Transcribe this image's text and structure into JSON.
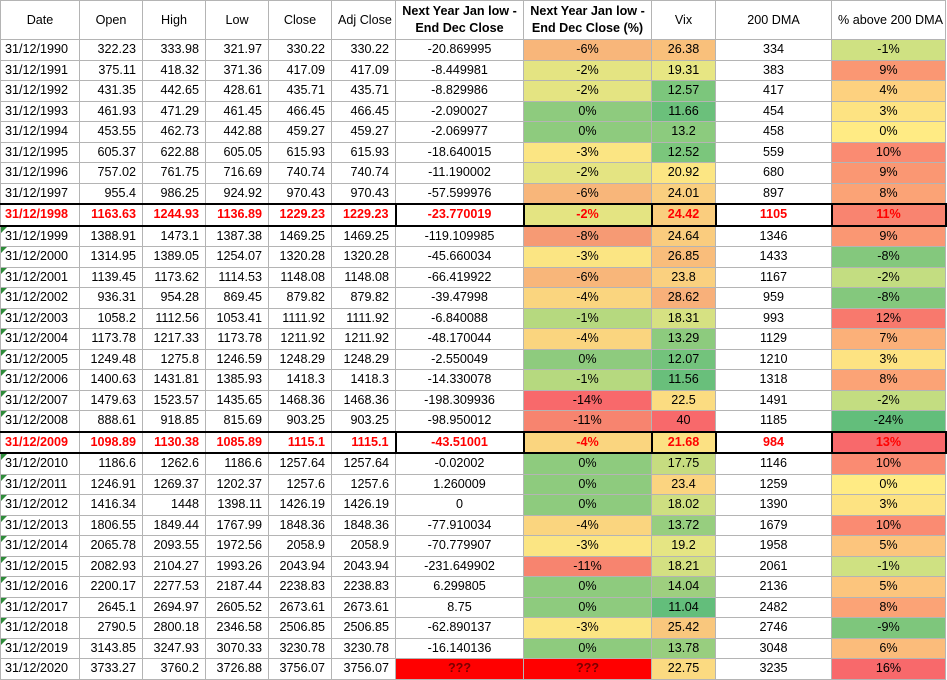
{
  "headers": [
    "Date",
    "Open",
    "High",
    "Low",
    "Close",
    "Adj Close",
    "Next Year Jan low - End Dec Close",
    "Next Year Jan low - End Dec Close (%)",
    "Vix",
    "200 DMA",
    "% above 200 DMA"
  ],
  "rows": [
    {
      "date": "31/12/1990",
      "open": "322.23",
      "high": "333.98",
      "low": "321.97",
      "close": "330.22",
      "adj": "330.22",
      "diff": "-20.869995",
      "pct": "-6%",
      "pct_color": "#f8b67a",
      "vix": "26.38",
      "vix_color": "#f9c07b",
      "dma": "334",
      "above": "-1%",
      "above_color": "#cfe182"
    },
    {
      "date": "31/12/1991",
      "open": "375.11",
      "high": "418.32",
      "low": "371.36",
      "close": "417.09",
      "adj": "417.09",
      "diff": "-8.449981",
      "pct": "-2%",
      "pct_color": "#e4e482",
      "vix": "19.31",
      "vix_color": "#e7e683",
      "dma": "383",
      "above": "9%",
      "above_color": "#fa9773"
    },
    {
      "date": "31/12/1992",
      "open": "431.35",
      "high": "442.65",
      "low": "428.61",
      "close": "435.71",
      "adj": "435.71",
      "diff": "-8.829986",
      "pct": "-2%",
      "pct_color": "#e4e482",
      "vix": "12.57",
      "vix_color": "#7cc67c",
      "dma": "417",
      "above": "4%",
      "above_color": "#fdd17f"
    },
    {
      "date": "31/12/1993",
      "open": "461.93",
      "high": "471.29",
      "low": "461.45",
      "close": "466.45",
      "adj": "466.45",
      "diff": "-2.090027",
      "pct": "0%",
      "pct_color": "#8ecb7e",
      "vix": "11.66",
      "vix_color": "#6bc07b",
      "dma": "454",
      "above": "3%",
      "above_color": "#fde382"
    },
    {
      "date": "31/12/1994",
      "open": "453.55",
      "high": "462.73",
      "low": "442.88",
      "close": "459.27",
      "adj": "459.27",
      "diff": "-2.069977",
      "pct": "0%",
      "pct_color": "#8ecb7e",
      "vix": "13.2",
      "vix_color": "#8ccb7e",
      "dma": "458",
      "above": "0%",
      "above_color": "#ffeb84"
    },
    {
      "date": "31/12/1995",
      "open": "605.37",
      "high": "622.88",
      "low": "605.05",
      "close": "615.93",
      "adj": "615.93",
      "diff": "-18.640015",
      "pct": "-3%",
      "pct_color": "#fbe583",
      "vix": "12.52",
      "vix_color": "#7bc67c",
      "dma": "559",
      "above": "10%",
      "above_color": "#fa8b72"
    },
    {
      "date": "31/12/1996",
      "open": "757.02",
      "high": "761.75",
      "low": "716.69",
      "close": "740.74",
      "adj": "740.74",
      "diff": "-11.190002",
      "pct": "-2%",
      "pct_color": "#e4e482",
      "vix": "20.92",
      "vix_color": "#fce683",
      "dma": "680",
      "above": "9%",
      "above_color": "#fa9773"
    },
    {
      "date": "31/12/1997",
      "open": "955.4",
      "high": "986.25",
      "low": "924.92",
      "close": "970.43",
      "adj": "970.43",
      "diff": "-57.599976",
      "pct": "-6%",
      "pct_color": "#f8b67a",
      "vix": "24.01",
      "vix_color": "#facf7f",
      "dma": "897",
      "above": "8%",
      "above_color": "#fba376"
    },
    {
      "date": "31/12/1998",
      "open": "1163.63",
      "high": "1244.93",
      "low": "1136.89",
      "close": "1229.23",
      "adj": "1229.23",
      "diff": "-23.770019",
      "pct": "-2%",
      "pct_color": "#e4e482",
      "vix": "24.42",
      "vix_color": "#facd7e",
      "dma": "1105",
      "above": "11%",
      "above_color": "#f98470",
      "hl": true
    },
    {
      "date": "31/12/1999",
      "open": "1388.91",
      "high": "1473.1",
      "low": "1387.38",
      "close": "1469.25",
      "adj": "1469.25",
      "diff": "-119.109985",
      "pct": "-8%",
      "pct_color": "#f69a74",
      "vix": "24.64",
      "vix_color": "#facc7e",
      "dma": "1346",
      "above": "9%",
      "above_color": "#fa9773"
    },
    {
      "date": "31/12/2000",
      "open": "1314.95",
      "high": "1389.05",
      "low": "1254.07",
      "close": "1320.28",
      "adj": "1320.28",
      "diff": "-45.660034",
      "pct": "-3%",
      "pct_color": "#fbe583",
      "vix": "26.85",
      "vix_color": "#f9bd7b",
      "dma": "1433",
      "above": "-8%",
      "above_color": "#84c87d"
    },
    {
      "date": "31/12/2001",
      "open": "1139.45",
      "high": "1173.62",
      "low": "1114.53",
      "close": "1148.08",
      "adj": "1148.08",
      "diff": "-66.419922",
      "pct": "-6%",
      "pct_color": "#f8b67a",
      "vix": "23.8",
      "vix_color": "#fad07f",
      "dma": "1167",
      "above": "-2%",
      "above_color": "#c3dd81"
    },
    {
      "date": "31/12/2002",
      "open": "936.31",
      "high": "954.28",
      "low": "869.45",
      "close": "879.82",
      "adj": "879.82",
      "diff": "-39.47998",
      "pct": "-4%",
      "pct_color": "#fad57f",
      "vix": "28.62",
      "vix_color": "#f8b07a",
      "dma": "959",
      "above": "-8%",
      "above_color": "#84c87d"
    },
    {
      "date": "31/12/2003",
      "open": "1058.2",
      "high": "1112.56",
      "low": "1053.41",
      "close": "1111.92",
      "adj": "1111.92",
      "diff": "-6.840088",
      "pct": "-1%",
      "pct_color": "#b6d97f",
      "vix": "18.31",
      "vix_color": "#d6e182",
      "dma": "993",
      "above": "12%",
      "above_color": "#f8796d"
    },
    {
      "date": "31/12/2004",
      "open": "1173.78",
      "high": "1217.33",
      "low": "1173.78",
      "close": "1211.92",
      "adj": "1211.92",
      "diff": "-48.170044",
      "pct": "-4%",
      "pct_color": "#fad57f",
      "vix": "13.29",
      "vix_color": "#8dcb7e",
      "dma": "1129",
      "above": "7%",
      "above_color": "#fbb079"
    },
    {
      "date": "31/12/2005",
      "open": "1249.48",
      "high": "1275.8",
      "low": "1246.59",
      "close": "1248.29",
      "adj": "1248.29",
      "diff": "-2.550049",
      "pct": "0%",
      "pct_color": "#8ecb7e",
      "vix": "12.07",
      "vix_color": "#73c37c",
      "dma": "1210",
      "above": "3%",
      "above_color": "#fde382"
    },
    {
      "date": "31/12/2006",
      "open": "1400.63",
      "high": "1431.81",
      "low": "1385.93",
      "close": "1418.3",
      "adj": "1418.3",
      "diff": "-14.330078",
      "pct": "-1%",
      "pct_color": "#b6d97f",
      "vix": "11.56",
      "vix_color": "#69bf7b",
      "dma": "1318",
      "above": "8%",
      "above_color": "#fba376"
    },
    {
      "date": "31/12/2007",
      "open": "1479.63",
      "high": "1523.57",
      "low": "1435.65",
      "close": "1468.36",
      "adj": "1468.36",
      "diff": "-198.309936",
      "pct": "-14%",
      "pct_color": "#f8696b",
      "vix": "22.5",
      "vix_color": "#fbdc81",
      "dma": "1491",
      "above": "-2%",
      "above_color": "#c3dd81"
    },
    {
      "date": "31/12/2008",
      "open": "888.61",
      "high": "918.85",
      "low": "815.69",
      "close": "903.25",
      "adj": "903.25",
      "diff": "-98.950012",
      "pct": "-11%",
      "pct_color": "#f7846f",
      "vix": "40",
      "vix_color": "#f8696b",
      "dma": "1185",
      "above": "-24%",
      "above_color": "#63be7b"
    },
    {
      "date": "31/12/2009",
      "open": "1098.89",
      "high": "1130.38",
      "low": "1085.89",
      "close": "1115.1",
      "adj": "1115.1",
      "diff": "-43.51001",
      "pct": "-4%",
      "pct_color": "#fad57f",
      "vix": "21.68",
      "vix_color": "#fce183",
      "dma": "984",
      "above": "13%",
      "above_color": "#f8696b",
      "hl": true
    },
    {
      "date": "31/12/2010",
      "open": "1186.6",
      "high": "1262.6",
      "low": "1186.6",
      "close": "1257.64",
      "adj": "1257.64",
      "diff": "-0.02002",
      "pct": "0%",
      "pct_color": "#8ecb7e",
      "vix": "17.75",
      "vix_color": "#c6dc80",
      "dma": "1146",
      "above": "10%",
      "above_color": "#fa8b72"
    },
    {
      "date": "31/12/2011",
      "open": "1246.91",
      "high": "1269.37",
      "low": "1202.37",
      "close": "1257.6",
      "adj": "1257.6",
      "diff": "1.260009",
      "pct": "0%",
      "pct_color": "#8ecb7e",
      "vix": "23.4",
      "vix_color": "#fbd480",
      "dma": "1259",
      "above": "0%",
      "above_color": "#ffeb84"
    },
    {
      "date": "31/12/2012",
      "open": "1416.34",
      "high": "1448",
      "low": "1398.11",
      "close": "1426.19",
      "adj": "1426.19",
      "diff": "0",
      "pct": "0%",
      "pct_color": "#8ecb7e",
      "vix": "18.02",
      "vix_color": "#cedf81",
      "dma": "1390",
      "above": "3%",
      "above_color": "#fde382"
    },
    {
      "date": "31/12/2013",
      "open": "1806.55",
      "high": "1849.44",
      "low": "1767.99",
      "close": "1848.36",
      "adj": "1848.36",
      "diff": "-77.910034",
      "pct": "-4%",
      "pct_color": "#fad57f",
      "vix": "13.72",
      "vix_color": "#97ce7f",
      "dma": "1679",
      "above": "10%",
      "above_color": "#fa8b72"
    },
    {
      "date": "31/12/2014",
      "open": "2065.78",
      "high": "2093.55",
      "low": "1972.56",
      "close": "2058.9",
      "adj": "2058.9",
      "diff": "-70.779907",
      "pct": "-3%",
      "pct_color": "#fbe583",
      "vix": "19.2",
      "vix_color": "#e5e583",
      "dma": "1958",
      "above": "5%",
      "above_color": "#fcc57d"
    },
    {
      "date": "31/12/2015",
      "open": "2082.93",
      "high": "2104.27",
      "low": "1993.26",
      "close": "2043.94",
      "adj": "2043.94",
      "diff": "-231.649902",
      "pct": "-11%",
      "pct_color": "#f7846f",
      "vix": "18.21",
      "vix_color": "#d3e082",
      "dma": "2061",
      "above": "-1%",
      "above_color": "#cfe182"
    },
    {
      "date": "31/12/2016",
      "open": "2200.17",
      "high": "2277.53",
      "low": "2187.44",
      "close": "2238.83",
      "adj": "2238.83",
      "diff": "6.299805",
      "pct": "0%",
      "pct_color": "#8ecb7e",
      "vix": "14.04",
      "vix_color": "#9ecf7f",
      "dma": "2136",
      "above": "5%",
      "above_color": "#fcc57d"
    },
    {
      "date": "31/12/2017",
      "open": "2645.1",
      "high": "2694.97",
      "low": "2605.52",
      "close": "2673.61",
      "adj": "2673.61",
      "diff": "8.75",
      "pct": "0%",
      "pct_color": "#8ecb7e",
      "vix": "11.04",
      "vix_color": "#63be7b",
      "dma": "2482",
      "above": "8%",
      "above_color": "#fba376"
    },
    {
      "date": "31/12/2018",
      "open": "2790.5",
      "high": "2800.18",
      "low": "2346.58",
      "close": "2506.85",
      "adj": "2506.85",
      "diff": "-62.890137",
      "pct": "-3%",
      "pct_color": "#fbe583",
      "vix": "25.42",
      "vix_color": "#f9c77d",
      "dma": "2746",
      "above": "-9%",
      "above_color": "#7ec67c"
    },
    {
      "date": "31/12/2019",
      "open": "3143.85",
      "high": "3247.93",
      "low": "3070.33",
      "close": "3230.78",
      "adj": "3230.78",
      "diff": "-16.140136",
      "pct": "0%",
      "pct_color": "#8ecb7e",
      "vix": "13.78",
      "vix_color": "#98ce7f",
      "dma": "3048",
      "above": "6%",
      "above_color": "#fbbc7b"
    },
    {
      "date": "31/12/2020",
      "open": "3733.27",
      "high": "3760.2",
      "low": "3726.88",
      "close": "3756.07",
      "adj": "3756.07",
      "diff": "???",
      "pct": "???",
      "pct_color": "#ff0000",
      "vix": "22.75",
      "vix_color": "#fbda81",
      "dma": "3235",
      "above": "16%",
      "above_color": "#f8696b",
      "unknown": true
    }
  ]
}
